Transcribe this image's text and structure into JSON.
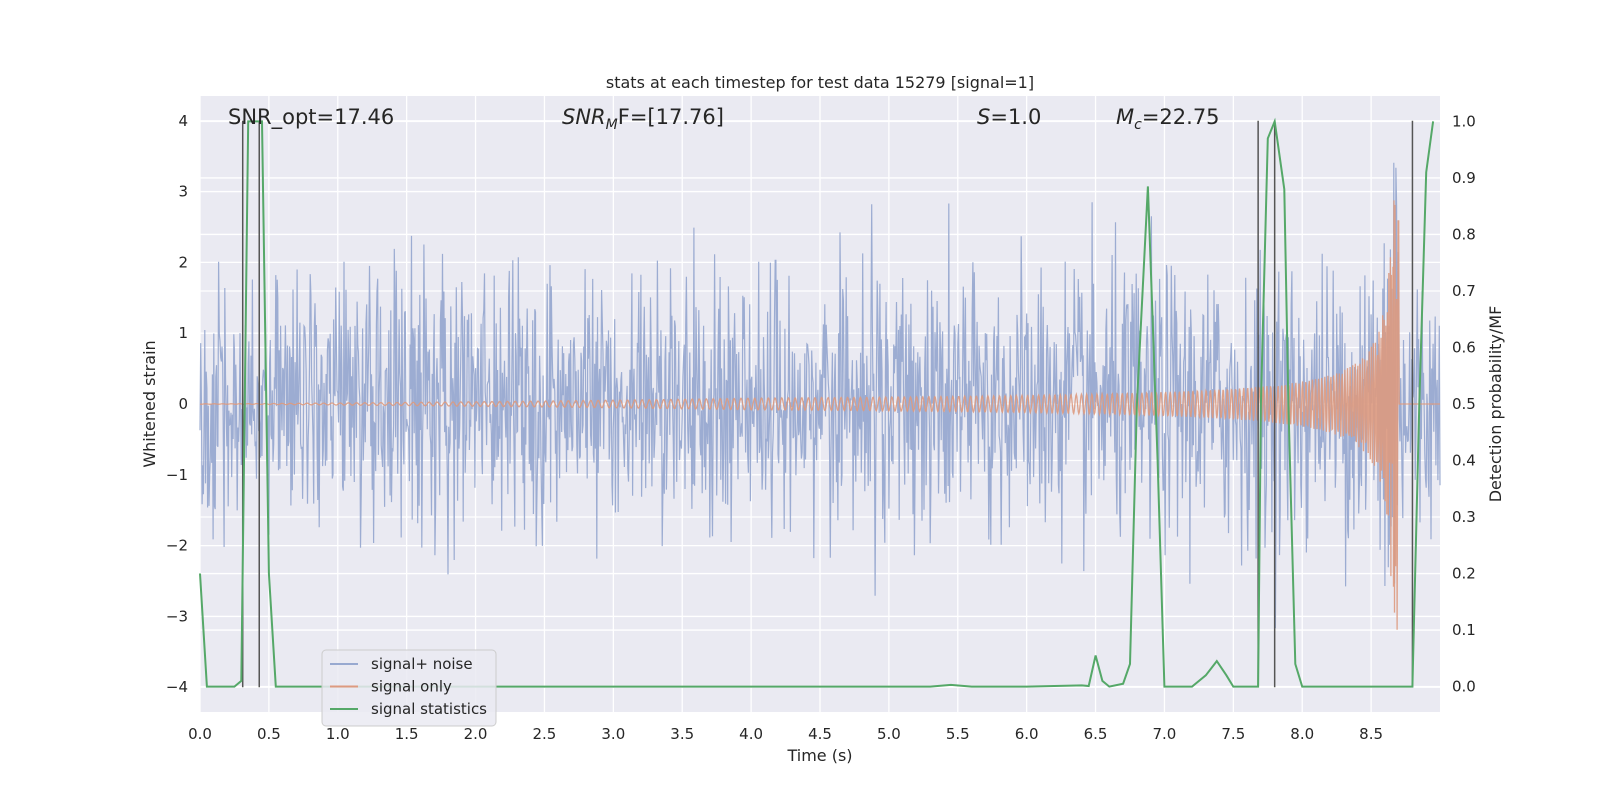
{
  "chart_data": {
    "type": "line",
    "title": "stats at each timestep for test data 15279 [signal=1]",
    "xlabel": "Time (s)",
    "ylabel_left": "Whitened strain",
    "ylabel_right": "Detection probability/MF",
    "xlim": [
      0.0,
      9.0
    ],
    "ylim_left": [
      -4.35,
      4.35
    ],
    "ylim_right": [
      -0.045,
      1.045
    ],
    "x_ticks": [
      "0.0",
      "0.5",
      "1.0",
      "1.5",
      "2.0",
      "2.5",
      "3.0",
      "3.5",
      "4.0",
      "4.5",
      "5.0",
      "5.5",
      "6.0",
      "6.5",
      "7.0",
      "7.5",
      "8.0",
      "8.5"
    ],
    "y_left_ticks": [
      "4",
      "3",
      "2",
      "1",
      "0",
      "−1",
      "−2",
      "−3",
      "−4"
    ],
    "y_right_ticks": [
      "1.0",
      "0.9",
      "0.8",
      "0.7",
      "0.6",
      "0.5",
      "0.4",
      "0.3",
      "0.2",
      "0.1",
      "0.0"
    ],
    "grid": true,
    "legend_position": "lower-left",
    "annotations": [
      {
        "pre": "SNR_opt=17.46",
        "italic": "",
        "sub": "",
        "post": ""
      },
      {
        "pre": "",
        "italic": "SNR",
        "sub": "M",
        "post": "F=[17.76]"
      },
      {
        "pre": "",
        "italic": "S",
        "sub": "",
        "post": "=1.0"
      },
      {
        "pre": "",
        "italic": "M",
        "sub": "c",
        "post": "=22.75"
      }
    ],
    "series": [
      {
        "name": "signal+ noise",
        "color": "#98a9d0",
        "description": "whitened noisy strain, approx. Gaussian with sigma ~0.8 and peaks up to ~4"
      },
      {
        "name": "signal only",
        "color": "#dd9a80",
        "description": "chirp signal growing in amplitude, peak ~3.2 near t=8.65"
      },
      {
        "name": "signal statistics",
        "color": "#55a868",
        "axis": "right",
        "x": [
          0.0,
          0.05,
          0.1,
          0.2,
          0.25,
          0.3,
          0.35,
          0.4,
          0.45,
          0.5,
          0.55,
          0.6,
          0.8,
          1.5,
          2.5,
          3.5,
          4.5,
          5.3,
          5.45,
          5.6,
          6.0,
          6.4,
          6.45,
          6.5,
          6.55,
          6.6,
          6.7,
          6.75,
          6.8,
          6.88,
          6.95,
          7.0,
          7.05,
          7.2,
          7.3,
          7.38,
          7.45,
          7.5,
          7.6,
          7.68,
          7.7,
          7.75,
          7.8,
          7.87,
          7.9,
          7.95,
          8.0,
          8.2,
          8.8,
          8.85,
          8.9,
          8.95
        ],
        "values": [
          0.2,
          0.0,
          0.0,
          0.0,
          0.0,
          0.01,
          1.0,
          1.0,
          1.0,
          0.2,
          0.0,
          0.0,
          0.0,
          0.0,
          0.0,
          0.0,
          0.0,
          0.0,
          0.003,
          0.0,
          0.0,
          0.002,
          0.001,
          0.055,
          0.01,
          0.0,
          0.005,
          0.04,
          0.5,
          0.885,
          0.4,
          0.0,
          0.0,
          0.0,
          0.02,
          0.045,
          0.02,
          0.0,
          0.0,
          0.0,
          0.5,
          0.97,
          1.0,
          0.88,
          0.5,
          0.04,
          0.0,
          0.0,
          0.0,
          0.5,
          0.91,
          1.0
        ]
      }
    ],
    "vertical_lines_x": [
      0.31,
      0.43,
      7.68,
      7.8,
      8.8
    ]
  }
}
